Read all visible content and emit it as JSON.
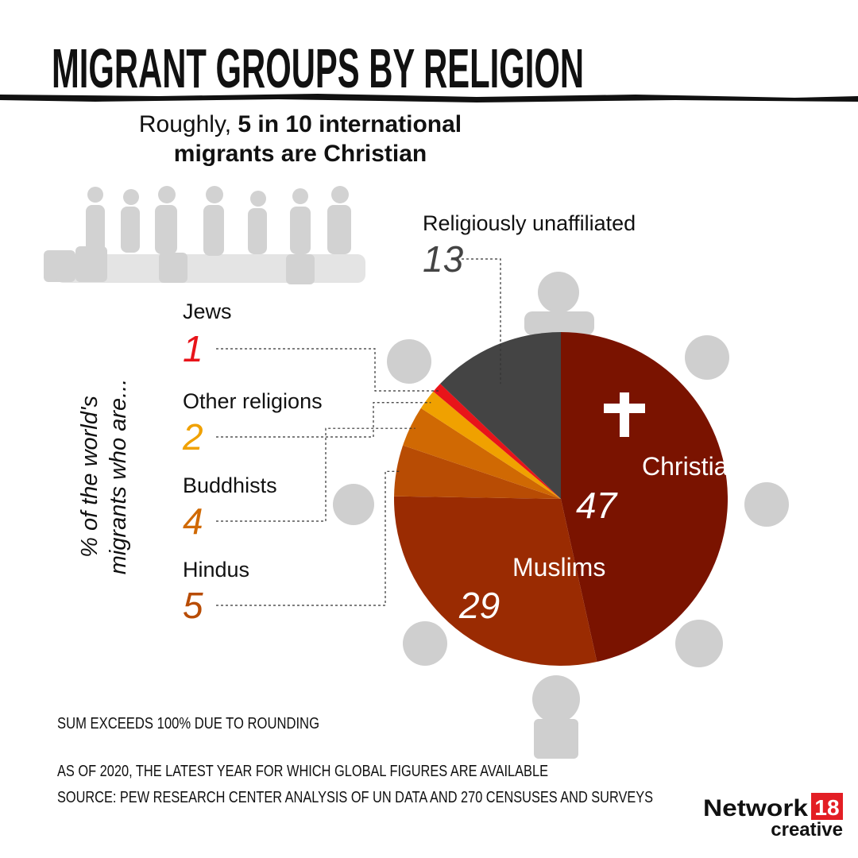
{
  "title": "MIGRANT GROUPS BY RELIGION",
  "subtitle": [
    "Roughly, ",
    "5 in 10 international",
    "migrants are Christian"
  ],
  "chart_data": {
    "type": "pie",
    "axis_label": [
      "% of the world's",
      "migrants who are..."
    ],
    "categories": [
      "Christians",
      "Muslims",
      "Hindus",
      "Buddhists",
      "Other religions",
      "Jews",
      "Religiously unaffiliated"
    ],
    "values": [
      47,
      29,
      5,
      4,
      2,
      1,
      13
    ],
    "colors": [
      "#7a1300",
      "#9a2b02",
      "#b84c04",
      "#d06903",
      "#f0a100",
      "#e8141a",
      "#444444"
    ]
  },
  "notes": [
    "SUM EXCEEDS 100% DUE TO ROUNDING",
    "AS OF 2020, THE LATEST YEAR FOR WHICH GLOBAL FIGURES ARE AVAILABLE",
    "SOURCE: PEW RESEARCH CENTER ANALYSIS OF UN DATA AND 270 CENSUSES AND SURVEYS"
  ],
  "logo": {
    "name": "Network",
    "number": "18",
    "tag": "creative"
  }
}
